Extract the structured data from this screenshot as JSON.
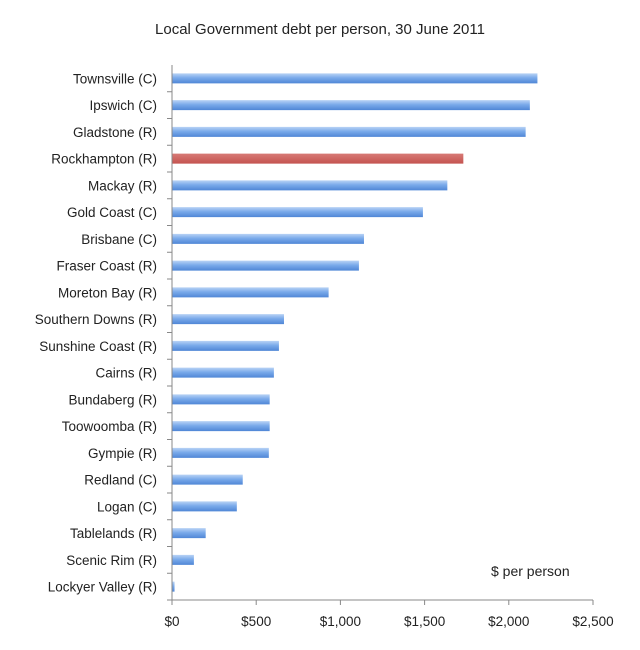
{
  "chart_data": {
    "type": "bar",
    "orientation": "horizontal",
    "title": "Local Government debt per person, 30 June 2011",
    "xlabel": "",
    "ylabel": "",
    "annotation": "$ per person",
    "xlim": [
      0,
      2500
    ],
    "xticks": [
      0,
      500,
      1000,
      1500,
      2000,
      2500
    ],
    "xtick_labels": [
      "$0",
      "$500",
      "$1,000",
      "$1,500",
      "$2,000",
      "$2,500"
    ],
    "grid": false,
    "legend": "none",
    "categories": [
      "Townsville (C)",
      "Ipswich (C)",
      "Gladstone (R)",
      "Rockhampton (R)",
      "Mackay (R)",
      "Gold Coast (C)",
      "Brisbane (C)",
      "Fraser Coast (R)",
      "Moreton Bay (R)",
      "Southern Downs (R)",
      "Sunshine Coast (R)",
      "Cairns (R)",
      "Bundaberg (R)",
      "Toowoomba (R)",
      "Gympie (R)",
      "Redland (C)",
      "Logan (C)",
      "Tablelands (R)",
      "Scenic Rim (R)",
      "Lockyer Valley (R)"
    ],
    "values": [
      2170,
      2125,
      2100,
      1730,
      1635,
      1490,
      1140,
      1110,
      930,
      665,
      635,
      605,
      580,
      580,
      575,
      420,
      385,
      200,
      130,
      15
    ],
    "colors": {
      "default": "#6fa2e4",
      "highlight": "#c9605c"
    },
    "highlight_category": "Rockhampton (R)"
  }
}
